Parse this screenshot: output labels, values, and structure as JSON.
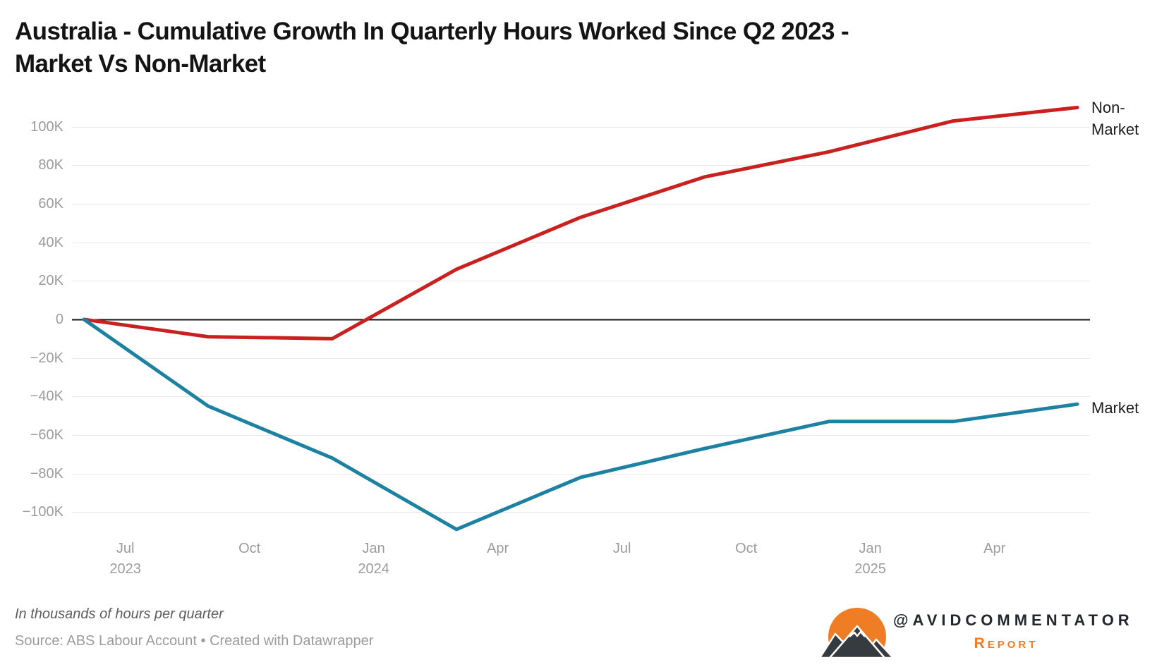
{
  "title": {
    "line1": "Australia - Cumulative Growth In Quarterly Hours Worked Since Q2 2023 -",
    "line2": "Market Vs Non-Market"
  },
  "chart_data": {
    "type": "line",
    "title": "Australia - Cumulative Growth In Quarterly Hours Worked Since Q2 2023 - Market Vs Non-Market",
    "values_unit": "thousands of hours per quarter (axis shows K)",
    "categories": [
      "Q2 2023",
      "Q3 2023",
      "Q4 2023",
      "Q1 2024",
      "Q2 2024",
      "Q3 2024",
      "Q4 2024",
      "Q1 2025",
      "Q2 2025"
    ],
    "series": [
      {
        "name": "Non-Market",
        "color": "#c9211f",
        "label_lines": [
          "Non-",
          "Market"
        ],
        "values": [
          0,
          -9,
          -10,
          26,
          53,
          74,
          87,
          103,
          110
        ]
      },
      {
        "name": "Market",
        "color": "#1d81a2",
        "label_lines": [
          "Market"
        ],
        "values": [
          0,
          -45,
          -72,
          -109,
          -82,
          -67,
          -53,
          -53,
          -44
        ]
      }
    ],
    "y_axis": {
      "ticks_k": [
        100,
        80,
        60,
        40,
        20,
        0,
        -20,
        -40,
        -60,
        -80,
        -100
      ],
      "tick_labels": [
        "100K",
        "80K",
        "60K",
        "40K",
        "20K",
        "0",
        "−20K",
        "−40K",
        "−60K",
        "−80K",
        "−100K"
      ],
      "ylim_k": [
        -112,
        113
      ],
      "grid": true,
      "zero_line": true
    },
    "x_axis": {
      "tick_labels": [
        [
          "Jul",
          "2023"
        ],
        [
          "Oct"
        ],
        [
          "Jan",
          "2024"
        ],
        [
          "Apr"
        ],
        [
          "Jul"
        ],
        [
          "Oct"
        ],
        [
          "Jan",
          "2025"
        ],
        [
          "Apr"
        ]
      ]
    },
    "legend_position": "line-end-labels"
  },
  "footer": {
    "note": "In thousands of hours per quarter",
    "source": "Source: ABS Labour Account • Created with Datawrapper"
  },
  "branding": {
    "handle": "@AVIDCOMMENTATOR",
    "sub": "Report",
    "orange": "#ee7d26",
    "dark": "#363b3f"
  }
}
